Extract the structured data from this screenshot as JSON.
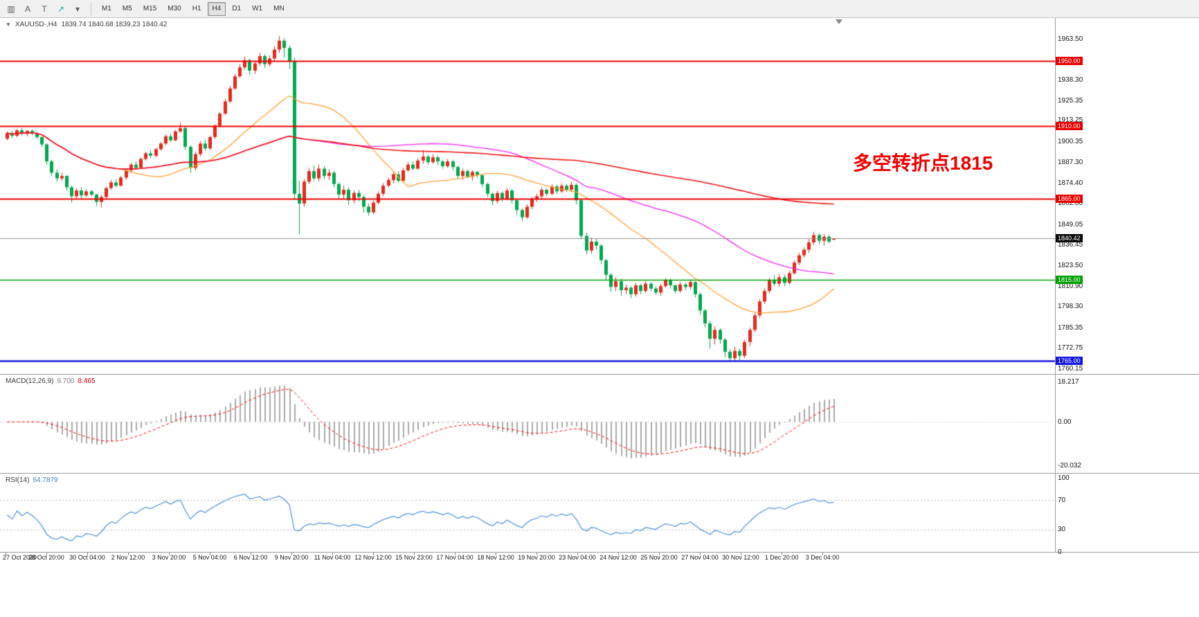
{
  "toolbar": {
    "icons": [
      {
        "name": "bar-chart-icon",
        "glyph": "▥"
      },
      {
        "name": "text-annotation-icon",
        "glyph": "A"
      },
      {
        "name": "template-icon",
        "glyph": "T"
      },
      {
        "name": "draw-arrow-icon",
        "glyph": "↗",
        "color": "#2f9e9e"
      },
      {
        "name": "dropdown-caret-icon",
        "glyph": "▾"
      }
    ],
    "timeframes": [
      "M1",
      "M5",
      "M15",
      "M30",
      "H1",
      "H4",
      "D1",
      "W1",
      "MN"
    ],
    "active_timeframe": "H4"
  },
  "chart": {
    "header": {
      "expand_arrow": "▼",
      "symbol": "XAUUSD-,H4",
      "ohlc": "1839.74 1840.68 1839.23 1840.42"
    },
    "annotation": {
      "text": "多空转折点1815",
      "color": "#f00000"
    },
    "current_price": {
      "value": 1840.42,
      "label": "1840.42",
      "tag_color": "#0a0a0a",
      "line_color": "#8f8f8f"
    },
    "hlines": [
      {
        "price": 1950.0,
        "label": "1950.00",
        "color": "#e80000",
        "width": 2
      },
      {
        "price": 1910.0,
        "label": "1910.00",
        "color": "#e80000",
        "width": 2
      },
      {
        "price": 1865.0,
        "label": "1865.00",
        "color": "#e80000",
        "width": 2
      },
      {
        "price": 1815.0,
        "label": "1815.00",
        "color": "#00a000",
        "width": 1.5
      },
      {
        "price": 1765.0,
        "label": "1765.00",
        "color": "#1515e0",
        "width": 2.5
      }
    ],
    "y_ticks": [
      "1963.50",
      "1938.30",
      "1925.35",
      "1913.25",
      "1900.35",
      "1887.30",
      "1874.40",
      "1862.00",
      "1849.05",
      "1836.45",
      "1823.50",
      "1810.90",
      "1798.30",
      "1785.35",
      "1772.75",
      "1760.15"
    ],
    "x_ticks": [
      "27 Oct 2020",
      "28 Oct 20:00",
      "30 Oct 04:00",
      "2 Nov 12:00",
      "3 Nov 20:00",
      "5 Nov 04:00",
      "6 Nov 12:00",
      "9 Nov 20:00",
      "11 Nov 04:00",
      "12 Nov 12:00",
      "15 Nov 23:00",
      "17 Nov 04:00",
      "18 Nov 12:00",
      "19 Nov 20:00",
      "23 Nov 04:00",
      "24 Nov 12:00",
      "25 Nov 20:00",
      "27 Nov 04:00",
      "30 Nov 12:00",
      "1 Dec 20:00",
      "3 Dec 04:00"
    ]
  },
  "macd_panel": {
    "label": "MACD(12,26,9)",
    "main_value": "9.700",
    "signal_value": "8.465",
    "y_ticks": [
      "18.217",
      "0.00",
      "-20.032"
    ]
  },
  "rsi_panel": {
    "label": "RSI(14)",
    "value": "64.7879",
    "y_ticks": [
      "100",
      "70",
      "30",
      "0"
    ],
    "levels": [
      70,
      30
    ]
  },
  "chart_data": {
    "type": "candlestick",
    "symbol": "XAUUSD",
    "timeframe": "H4",
    "title": "XAUUSD-,H4",
    "price_axis_range": [
      1756.8,
      1976.5
    ],
    "macd_axis_range": [
      -23.5,
      21.7
    ],
    "rsi_axis_range": [
      0,
      100
    ],
    "colors": {
      "up": "#e32a20",
      "down": "#00a84e",
      "ma_fast": "#ffa033",
      "ma_mid": "#f020f0",
      "ma_slow": "#ee1111",
      "macd_hist": "#a9a9a9",
      "macd_signal": "#ff0000",
      "rsi_line": "#4a90d9"
    },
    "overlays": [
      {
        "name": "MA-fast",
        "type": "sma",
        "period": 24,
        "color": "#ffa033"
      },
      {
        "name": "MA-mid",
        "type": "sma",
        "period": 60,
        "color": "#f020f0"
      },
      {
        "name": "MA-slow",
        "type": "sma",
        "period": 150,
        "color": "#ee1111"
      }
    ],
    "indicators": {
      "macd": {
        "fast": 12,
        "slow": 26,
        "signal": 9
      },
      "rsi": {
        "period": 14
      }
    },
    "ohlc": [
      [
        1902.0,
        1906.5,
        1901.0,
        1905.5
      ],
      [
        1905.5,
        1906.8,
        1902.5,
        1903.8
      ],
      [
        1903.8,
        1908.0,
        1903.0,
        1907.2
      ],
      [
        1907.2,
        1908.5,
        1904.0,
        1905.0
      ],
      [
        1905.0,
        1907.5,
        1903.5,
        1906.8
      ],
      [
        1906.8,
        1907.8,
        1904.2,
        1905.2
      ],
      [
        1905.2,
        1906.0,
        1901.5,
        1903.0
      ],
      [
        1903.0,
        1903.5,
        1897.0,
        1898.5
      ],
      [
        1898.5,
        1899.0,
        1886.0,
        1888.0
      ],
      [
        1888.0,
        1889.0,
        1879.0,
        1881.0
      ],
      [
        1881.0,
        1883.0,
        1875.5,
        1877.5
      ],
      [
        1877.5,
        1881.0,
        1876.0,
        1879.0
      ],
      [
        1879.0,
        1879.5,
        1870.0,
        1872.0
      ],
      [
        1872.0,
        1873.0,
        1862.5,
        1866.5
      ],
      [
        1866.5,
        1871.5,
        1865.0,
        1870.0
      ],
      [
        1870.0,
        1872.0,
        1864.5,
        1867.0
      ],
      [
        1867.0,
        1871.0,
        1866.0,
        1869.5
      ],
      [
        1869.5,
        1870.5,
        1866.5,
        1867.5
      ],
      [
        1867.5,
        1868.0,
        1860.5,
        1863.0
      ],
      [
        1863.0,
        1867.5,
        1859.5,
        1866.0
      ],
      [
        1866.0,
        1872.5,
        1865.0,
        1871.5
      ],
      [
        1871.5,
        1876.5,
        1870.5,
        1875.0
      ],
      [
        1875.0,
        1877.0,
        1872.0,
        1873.0
      ],
      [
        1873.0,
        1879.0,
        1872.5,
        1878.0
      ],
      [
        1878.0,
        1883.5,
        1876.5,
        1882.5
      ],
      [
        1882.5,
        1887.0,
        1881.0,
        1886.0
      ],
      [
        1886.0,
        1888.0,
        1883.0,
        1884.0
      ],
      [
        1884.0,
        1890.5,
        1883.5,
        1889.5
      ],
      [
        1889.5,
        1894.0,
        1888.5,
        1893.0
      ],
      [
        1893.0,
        1895.0,
        1890.0,
        1891.5
      ],
      [
        1891.5,
        1896.5,
        1890.5,
        1895.5
      ],
      [
        1895.5,
        1900.0,
        1894.5,
        1899.0
      ],
      [
        1899.0,
        1904.5,
        1898.0,
        1903.5
      ],
      [
        1903.5,
        1905.0,
        1900.0,
        1901.0
      ],
      [
        1901.0,
        1907.5,
        1900.5,
        1906.5
      ],
      [
        1906.5,
        1912.0,
        1905.5,
        1908.5
      ],
      [
        1908.5,
        1909.5,
        1895.0,
        1897.0
      ],
      [
        1897.0,
        1898.0,
        1881.0,
        1884.0
      ],
      [
        1884.0,
        1894.0,
        1882.5,
        1892.5
      ],
      [
        1892.5,
        1900.5,
        1891.0,
        1899.0
      ],
      [
        1899.0,
        1901.5,
        1894.5,
        1896.0
      ],
      [
        1896.0,
        1904.0,
        1895.0,
        1903.0
      ],
      [
        1903.0,
        1911.0,
        1902.0,
        1910.0
      ],
      [
        1910.0,
        1918.5,
        1909.0,
        1917.5
      ],
      [
        1917.5,
        1926.5,
        1916.5,
        1925.0
      ],
      [
        1925.0,
        1934.5,
        1924.0,
        1933.0
      ],
      [
        1933.0,
        1942.0,
        1932.0,
        1940.5
      ],
      [
        1940.5,
        1948.0,
        1939.5,
        1946.0
      ],
      [
        1946.0,
        1952.5,
        1944.5,
        1950.5
      ],
      [
        1950.5,
        1951.5,
        1941.5,
        1944.0
      ],
      [
        1944.0,
        1950.0,
        1942.0,
        1948.5
      ],
      [
        1948.5,
        1955.0,
        1947.0,
        1953.0
      ],
      [
        1953.0,
        1954.0,
        1945.5,
        1948.0
      ],
      [
        1948.0,
        1953.5,
        1946.5,
        1951.5
      ],
      [
        1951.5,
        1959.0,
        1949.5,
        1957.0
      ],
      [
        1957.0,
        1965.3,
        1955.0,
        1962.5
      ],
      [
        1962.5,
        1964.0,
        1952.0,
        1958.0
      ],
      [
        1958.0,
        1959.5,
        1945.0,
        1950.0
      ],
      [
        1950.0,
        1952.0,
        1865.0,
        1868.0
      ],
      [
        1868.0,
        1876.0,
        1843.0,
        1862.0
      ],
      [
        1862.0,
        1877.0,
        1860.0,
        1875.5
      ],
      [
        1875.5,
        1884.0,
        1874.0,
        1882.0
      ],
      [
        1882.0,
        1885.5,
        1876.0,
        1877.5
      ],
      [
        1877.5,
        1886.0,
        1875.5,
        1883.5
      ],
      [
        1883.5,
        1885.0,
        1877.0,
        1879.0
      ],
      [
        1879.0,
        1883.0,
        1876.5,
        1881.0
      ],
      [
        1881.0,
        1882.0,
        1872.0,
        1874.0
      ],
      [
        1874.0,
        1875.0,
        1865.0,
        1867.5
      ],
      [
        1867.5,
        1873.0,
        1864.5,
        1870.5
      ],
      [
        1870.5,
        1872.0,
        1861.0,
        1864.0
      ],
      [
        1864.0,
        1870.0,
        1862.0,
        1868.5
      ],
      [
        1868.5,
        1870.5,
        1863.5,
        1866.0
      ],
      [
        1866.0,
        1867.0,
        1856.5,
        1860.0
      ],
      [
        1860.0,
        1862.0,
        1854.5,
        1856.5
      ],
      [
        1856.5,
        1864.0,
        1855.5,
        1862.5
      ],
      [
        1862.5,
        1869.5,
        1861.5,
        1868.0
      ],
      [
        1868.0,
        1874.5,
        1866.5,
        1873.0
      ],
      [
        1873.0,
        1878.0,
        1872.0,
        1876.5
      ],
      [
        1876.5,
        1881.5,
        1874.5,
        1880.0
      ],
      [
        1880.0,
        1882.0,
        1875.0,
        1876.0
      ],
      [
        1876.0,
        1884.0,
        1875.5,
        1882.5
      ],
      [
        1882.5,
        1887.5,
        1881.5,
        1886.0
      ],
      [
        1886.0,
        1888.0,
        1882.5,
        1883.5
      ],
      [
        1883.5,
        1890.0,
        1883.0,
        1888.5
      ],
      [
        1888.5,
        1895.0,
        1886.5,
        1891.0
      ],
      [
        1891.0,
        1892.0,
        1886.0,
        1887.5
      ],
      [
        1887.5,
        1892.5,
        1886.5,
        1890.5
      ],
      [
        1890.5,
        1891.5,
        1885.5,
        1888.0
      ],
      [
        1888.0,
        1889.0,
        1883.5,
        1885.0
      ],
      [
        1885.0,
        1889.5,
        1884.0,
        1888.0
      ],
      [
        1888.0,
        1889.0,
        1882.5,
        1884.5
      ],
      [
        1884.5,
        1885.5,
        1877.0,
        1879.0
      ],
      [
        1879.0,
        1883.5,
        1876.5,
        1882.0
      ],
      [
        1882.0,
        1883.0,
        1877.5,
        1878.5
      ],
      [
        1878.5,
        1882.5,
        1876.0,
        1881.5
      ],
      [
        1881.5,
        1882.0,
        1878.0,
        1879.5
      ],
      [
        1879.5,
        1880.0,
        1872.0,
        1874.0
      ],
      [
        1874.0,
        1875.0,
        1866.0,
        1868.0
      ],
      [
        1868.0,
        1869.0,
        1861.0,
        1863.5
      ],
      [
        1863.5,
        1870.0,
        1862.0,
        1868.5
      ],
      [
        1868.5,
        1869.5,
        1863.0,
        1865.0
      ],
      [
        1865.0,
        1871.5,
        1864.0,
        1870.0
      ],
      [
        1870.0,
        1871.0,
        1862.0,
        1864.0
      ],
      [
        1864.0,
        1865.0,
        1855.0,
        1858.0
      ],
      [
        1858.0,
        1859.0,
        1851.0,
        1853.5
      ],
      [
        1853.5,
        1861.5,
        1852.5,
        1860.0
      ],
      [
        1860.0,
        1866.0,
        1858.5,
        1864.5
      ],
      [
        1864.5,
        1868.0,
        1863.0,
        1866.5
      ],
      [
        1866.5,
        1872.0,
        1865.0,
        1870.5
      ],
      [
        1870.5,
        1871.5,
        1866.5,
        1868.0
      ],
      [
        1868.0,
        1874.0,
        1867.0,
        1872.5
      ],
      [
        1872.5,
        1873.5,
        1868.0,
        1869.5
      ],
      [
        1869.5,
        1874.5,
        1868.5,
        1873.0
      ],
      [
        1873.0,
        1874.0,
        1869.0,
        1870.5
      ],
      [
        1870.5,
        1875.5,
        1869.0,
        1873.5
      ],
      [
        1873.5,
        1874.5,
        1861.5,
        1864.0
      ],
      [
        1864.0,
        1865.0,
        1840.0,
        1842.0
      ],
      [
        1842.0,
        1844.0,
        1830.5,
        1833.0
      ],
      [
        1833.0,
        1841.0,
        1831.0,
        1838.5
      ],
      [
        1838.5,
        1840.5,
        1833.5,
        1836.0
      ],
      [
        1836.0,
        1837.0,
        1824.5,
        1827.0
      ],
      [
        1827.0,
        1828.0,
        1815.0,
        1818.0
      ],
      [
        1818.0,
        1819.0,
        1807.5,
        1810.5
      ],
      [
        1810.5,
        1816.5,
        1808.0,
        1814.0
      ],
      [
        1814.0,
        1815.5,
        1805.0,
        1808.5
      ],
      [
        1808.5,
        1812.0,
        1806.0,
        1810.0
      ],
      [
        1810.0,
        1811.0,
        1803.5,
        1806.0
      ],
      [
        1806.0,
        1813.0,
        1804.5,
        1811.5
      ],
      [
        1811.5,
        1812.5,
        1806.0,
        1808.0
      ],
      [
        1808.0,
        1814.0,
        1807.0,
        1812.5
      ],
      [
        1812.5,
        1813.5,
        1808.0,
        1809.5
      ],
      [
        1809.5,
        1811.0,
        1805.5,
        1807.0
      ],
      [
        1807.0,
        1812.5,
        1805.0,
        1811.0
      ],
      [
        1811.0,
        1816.0,
        1810.0,
        1814.5
      ],
      [
        1814.5,
        1815.5,
        1809.5,
        1811.5
      ],
      [
        1811.5,
        1812.0,
        1806.5,
        1808.0
      ],
      [
        1808.0,
        1813.5,
        1807.0,
        1812.0
      ],
      [
        1812.0,
        1813.0,
        1808.5,
        1810.5
      ],
      [
        1810.5,
        1815.0,
        1809.0,
        1813.5
      ],
      [
        1813.5,
        1814.0,
        1804.0,
        1806.0
      ],
      [
        1806.0,
        1807.0,
        1793.5,
        1796.0
      ],
      [
        1796.0,
        1797.0,
        1785.5,
        1788.0
      ],
      [
        1788.0,
        1789.5,
        1772.5,
        1778.5
      ],
      [
        1778.5,
        1786.0,
        1775.0,
        1784.0
      ],
      [
        1784.0,
        1785.0,
        1775.5,
        1778.0
      ],
      [
        1778.0,
        1779.0,
        1767.0,
        1770.5
      ],
      [
        1770.5,
        1772.0,
        1764.5,
        1766.5
      ],
      [
        1766.5,
        1773.5,
        1764.8,
        1771.0
      ],
      [
        1771.0,
        1772.5,
        1765.5,
        1768.0
      ],
      [
        1768.0,
        1778.0,
        1766.5,
        1776.5
      ],
      [
        1776.5,
        1785.5,
        1774.0,
        1784.0
      ],
      [
        1784.0,
        1794.5,
        1782.5,
        1793.0
      ],
      [
        1793.0,
        1803.0,
        1791.5,
        1801.5
      ],
      [
        1801.5,
        1809.5,
        1800.0,
        1808.0
      ],
      [
        1808.0,
        1816.0,
        1806.5,
        1814.5
      ],
      [
        1814.5,
        1817.5,
        1811.0,
        1812.5
      ],
      [
        1812.5,
        1818.5,
        1810.5,
        1816.5
      ],
      [
        1816.5,
        1818.0,
        1811.0,
        1813.0
      ],
      [
        1813.0,
        1820.5,
        1812.0,
        1819.0
      ],
      [
        1819.0,
        1827.0,
        1818.0,
        1825.5
      ],
      [
        1825.5,
        1831.5,
        1824.0,
        1830.0
      ],
      [
        1830.0,
        1835.0,
        1828.5,
        1833.5
      ],
      [
        1833.5,
        1840.0,
        1831.5,
        1838.0
      ],
      [
        1838.0,
        1844.5,
        1836.5,
        1842.5
      ],
      [
        1842.5,
        1843.5,
        1837.0,
        1839.0
      ],
      [
        1839.0,
        1843.0,
        1836.0,
        1841.5
      ],
      [
        1841.5,
        1842.5,
        1837.5,
        1838.5
      ],
      [
        1839.7,
        1840.7,
        1839.2,
        1840.4
      ]
    ]
  }
}
